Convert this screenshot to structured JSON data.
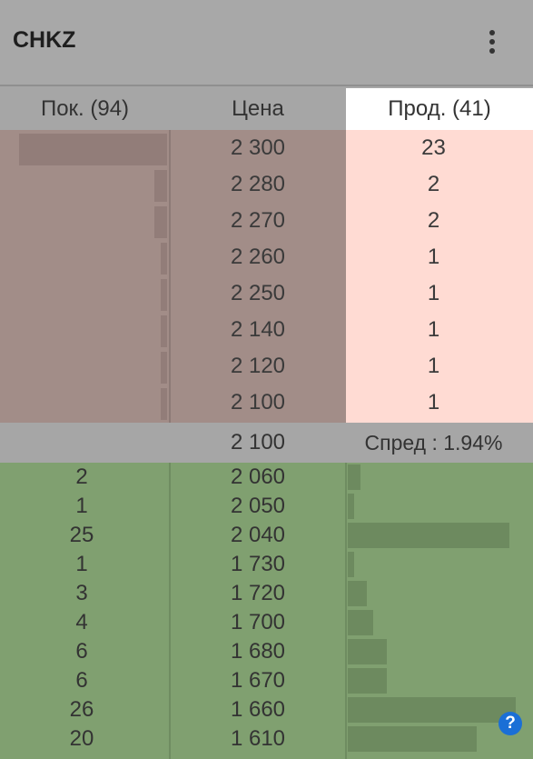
{
  "header": {
    "ticker": "CHKZ"
  },
  "columns": {
    "buy": "Пок. (94)",
    "price": "Цена",
    "sell": "Прод. (41)"
  },
  "asks": [
    {
      "price": "2 300",
      "qty": "23",
      "qty_num": 23
    },
    {
      "price": "2 280",
      "qty": "2",
      "qty_num": 2
    },
    {
      "price": "2 270",
      "qty": "2",
      "qty_num": 2
    },
    {
      "price": "2 260",
      "qty": "1",
      "qty_num": 1
    },
    {
      "price": "2 250",
      "qty": "1",
      "qty_num": 1
    },
    {
      "price": "2 140",
      "qty": "1",
      "qty_num": 1
    },
    {
      "price": "2 120",
      "qty": "1",
      "qty_num": 1
    },
    {
      "price": "2 100",
      "qty": "1",
      "qty_num": 1
    }
  ],
  "spread_row": {
    "price": "2 100",
    "spread": "Спред : 1.94%"
  },
  "bids": [
    {
      "qty": "2",
      "qty_num": 2,
      "price": "2 060"
    },
    {
      "qty": "1",
      "qty_num": 1,
      "price": "2 050"
    },
    {
      "qty": "25",
      "qty_num": 25,
      "price": "2 040"
    },
    {
      "qty": "1",
      "qty_num": 1,
      "price": "1 730"
    },
    {
      "qty": "3",
      "qty_num": 3,
      "price": "1 720"
    },
    {
      "qty": "4",
      "qty_num": 4,
      "price": "1 700"
    },
    {
      "qty": "6",
      "qty_num": 6,
      "price": "1 680"
    },
    {
      "qty": "6",
      "qty_num": 6,
      "price": "1 670"
    },
    {
      "qty": "26",
      "qty_num": 26,
      "price": "1 660"
    },
    {
      "qty": "20",
      "qty_num": 20,
      "price": "1 610"
    }
  ],
  "icons": {
    "menu": "more-vertical-icon",
    "help": "help-icon"
  },
  "help_glyph": "?",
  "colors": {
    "ask_bg": "#ffdbd3",
    "ask_shade": "#a28d88",
    "bid_bg": "#80a070",
    "help_blue": "#1b6fd6"
  }
}
